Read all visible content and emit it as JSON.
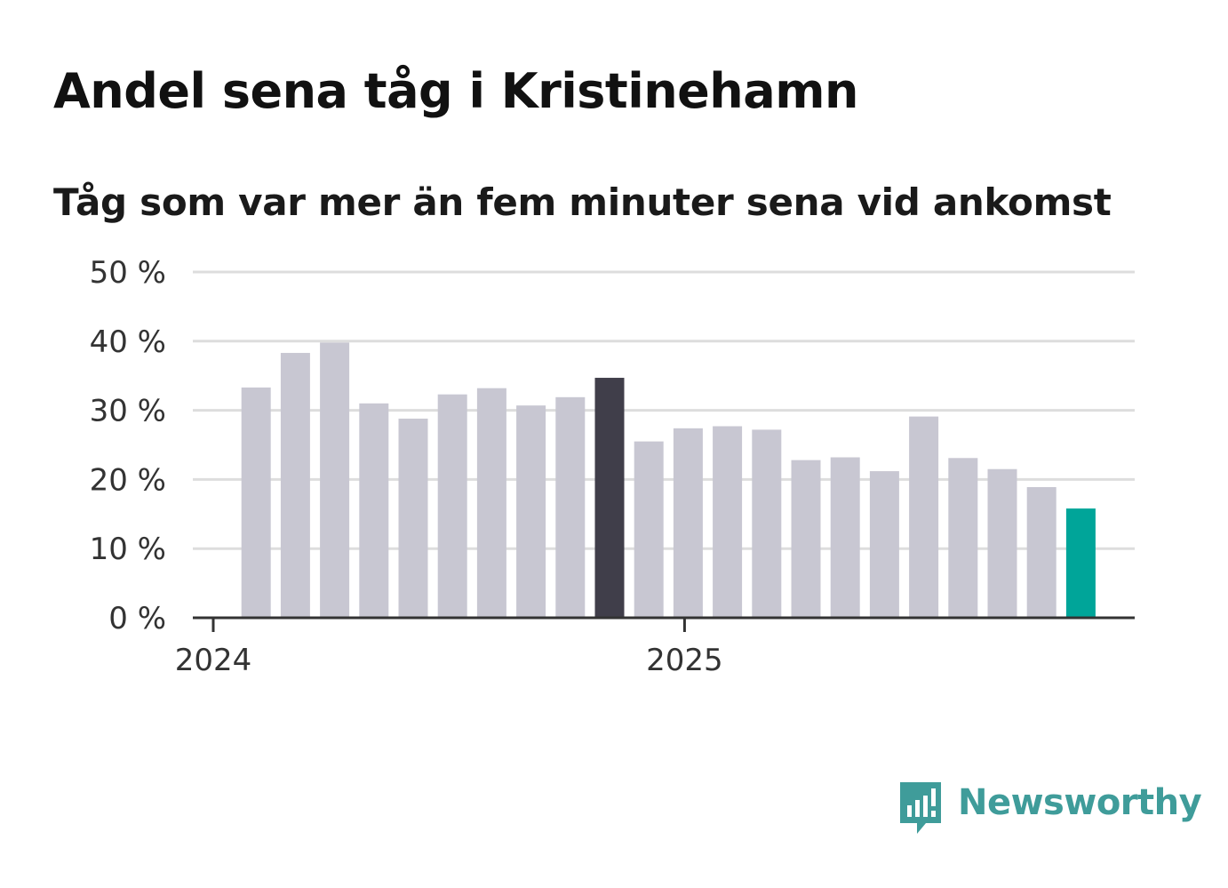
{
  "chart_data": {
    "type": "bar",
    "title": "Andel sena tåg i Kristinehamn",
    "subtitle": "Tåg som var mer än fem minuter sena vid ankomst",
    "xlabel": "",
    "ylabel": "",
    "ylim": [
      0,
      50
    ],
    "yticks": [
      0,
      10,
      20,
      30,
      40,
      50
    ],
    "ytick_labels": [
      "0 %",
      "10 %",
      "20 %",
      "30 %",
      "40 %",
      "50 %"
    ],
    "xtick_labels": [
      {
        "label": "2024",
        "index": 0
      },
      {
        "label": "2025",
        "index": 12
      }
    ],
    "grid": true,
    "categories": [
      "2024-01",
      "2024-02",
      "2024-03",
      "2024-04",
      "2024-05",
      "2024-06",
      "2024-07",
      "2024-08",
      "2024-09",
      "2024-10",
      "2024-11",
      "2024-12",
      "2025-01",
      "2025-02",
      "2025-03",
      "2025-04",
      "2025-05",
      "2025-06",
      "2025-07",
      "2025-08",
      "2025-09",
      "2025-10",
      "2025-11",
      "2025-12"
    ],
    "values": [
      null,
      33.3,
      38.3,
      39.8,
      31.0,
      28.8,
      32.3,
      33.2,
      30.7,
      31.9,
      34.7,
      25.5,
      27.4,
      27.7,
      27.2,
      22.8,
      23.2,
      21.2,
      29.1,
      23.1,
      21.5,
      18.9,
      15.8,
      null
    ],
    "highlights": [
      {
        "index": 10,
        "color": "#403e4a"
      },
      {
        "index": 22,
        "color": "#00a599"
      }
    ],
    "bar_color": "#c8c7d2",
    "source": "Newsworthy"
  },
  "logo": {
    "text": "Newsworthy"
  },
  "colors": {
    "axis": "#333333",
    "grid": "#dddddd",
    "logo": "#3f9c9a"
  }
}
